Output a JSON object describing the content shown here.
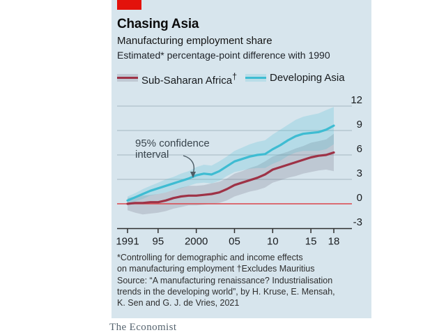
{
  "brand": {
    "red_tab_color": "#E3120B",
    "wordmark": "The Economist"
  },
  "header": {
    "title": "Chasing Asia",
    "subtitle": "Manufacturing employment share",
    "description": "Estimated* percentage-point difference with 1990"
  },
  "legend": [
    {
      "label": "Sub-Saharan Africa",
      "dagger": "†",
      "line_color": "#9E3246",
      "band_color": "#C0C9D4"
    },
    {
      "label": "Developing Asia",
      "dagger": "",
      "line_color": "#3EBCD2",
      "band_color": "#B9DDE8"
    }
  ],
  "annotation": {
    "line1": "95% confidence",
    "line2": "interval"
  },
  "chart_data": {
    "type": "line",
    "title": "Chasing Asia",
    "subtitle": "Manufacturing employment share",
    "ylabel": "Estimated* percentage-point difference with 1990",
    "x_range": [
      1991,
      2018
    ],
    "ylim": [
      -3,
      12
    ],
    "y_ticks": [
      12,
      9,
      6,
      3,
      0,
      -3
    ],
    "grid_values": [
      12,
      9,
      6,
      3
    ],
    "x_tick_years": [
      1991,
      1995,
      2000,
      2005,
      2010,
      2015,
      2018
    ],
    "x_tick_labels": [
      "1991",
      "95",
      "2000",
      "05",
      "10",
      "15",
      "18"
    ],
    "grid_color": "#AFC0CA",
    "zero_line_color": "#DB444B",
    "axis_color": "#2e2e2e",
    "legend_position": "top",
    "series": [
      {
        "name": "Sub-Saharan Africa†",
        "color": "#9E3246",
        "band_fill": "rgba(105,100,120,0.22)",
        "values": [
          0.0,
          0.1,
          0.1,
          0.2,
          0.2,
          0.4,
          0.7,
          0.9,
          1.0,
          1.0,
          1.1,
          1.2,
          1.4,
          1.8,
          2.3,
          2.6,
          2.9,
          3.2,
          3.6,
          4.2,
          4.5,
          4.8,
          5.1,
          5.4,
          5.7,
          5.9,
          6.0,
          6.3
        ],
        "upper": [
          0.7,
          0.9,
          1.0,
          1.1,
          1.2,
          1.4,
          1.7,
          2.0,
          2.2,
          2.2,
          2.3,
          2.5,
          2.7,
          3.1,
          3.7,
          4.0,
          4.4,
          4.7,
          5.2,
          5.8,
          6.1,
          6.4,
          6.8,
          7.1,
          7.5,
          7.7,
          7.9,
          8.6
        ],
        "lower": [
          -0.8,
          -1.1,
          -1.3,
          -1.2,
          -1.1,
          -0.9,
          -0.6,
          -0.4,
          -0.2,
          -0.2,
          -0.1,
          0.0,
          0.1,
          0.4,
          0.9,
          1.2,
          1.5,
          1.7,
          2.0,
          2.6,
          2.9,
          3.2,
          3.4,
          3.7,
          3.9,
          4.1,
          4.2,
          4.0
        ]
      },
      {
        "name": "Developing Asia",
        "color": "#3EBCD2",
        "band_fill": "rgba(62,188,210,0.22)",
        "values": [
          0.4,
          0.8,
          1.2,
          1.6,
          1.9,
          2.2,
          2.5,
          2.8,
          3.1,
          3.5,
          3.7,
          3.6,
          4.0,
          4.6,
          5.2,
          5.5,
          5.8,
          6.0,
          6.1,
          6.7,
          7.2,
          7.8,
          8.3,
          8.6,
          8.7,
          8.8,
          9.1,
          9.6
        ],
        "upper": [
          0.9,
          1.3,
          1.8,
          2.2,
          2.6,
          3.0,
          3.3,
          3.7,
          4.0,
          4.5,
          4.8,
          4.7,
          5.2,
          5.8,
          6.5,
          6.9,
          7.3,
          7.6,
          7.8,
          8.5,
          9.1,
          9.7,
          10.3,
          10.7,
          10.9,
          11.1,
          11.5,
          11.9
        ],
        "lower": [
          -0.1,
          0.3,
          0.6,
          1.0,
          1.2,
          1.4,
          1.7,
          1.9,
          2.2,
          2.5,
          2.6,
          2.5,
          2.8,
          3.4,
          3.9,
          4.1,
          4.3,
          4.4,
          4.4,
          4.9,
          5.3,
          5.9,
          6.3,
          6.5,
          6.5,
          6.5,
          6.7,
          7.3
        ]
      }
    ],
    "annotations": [
      "95% confidence interval"
    ]
  },
  "footnotes": {
    "footnote": "*Controlling for demographic and income effects\non manufacturing employment  †Excludes Mauritius",
    "source": "Source: “A manufacturing renaissance? Industrialisation\ntrends in the developing world”, by H. Kruse, E. Mensah,\nK. Sen and G. J. de Vries, 2021"
  }
}
